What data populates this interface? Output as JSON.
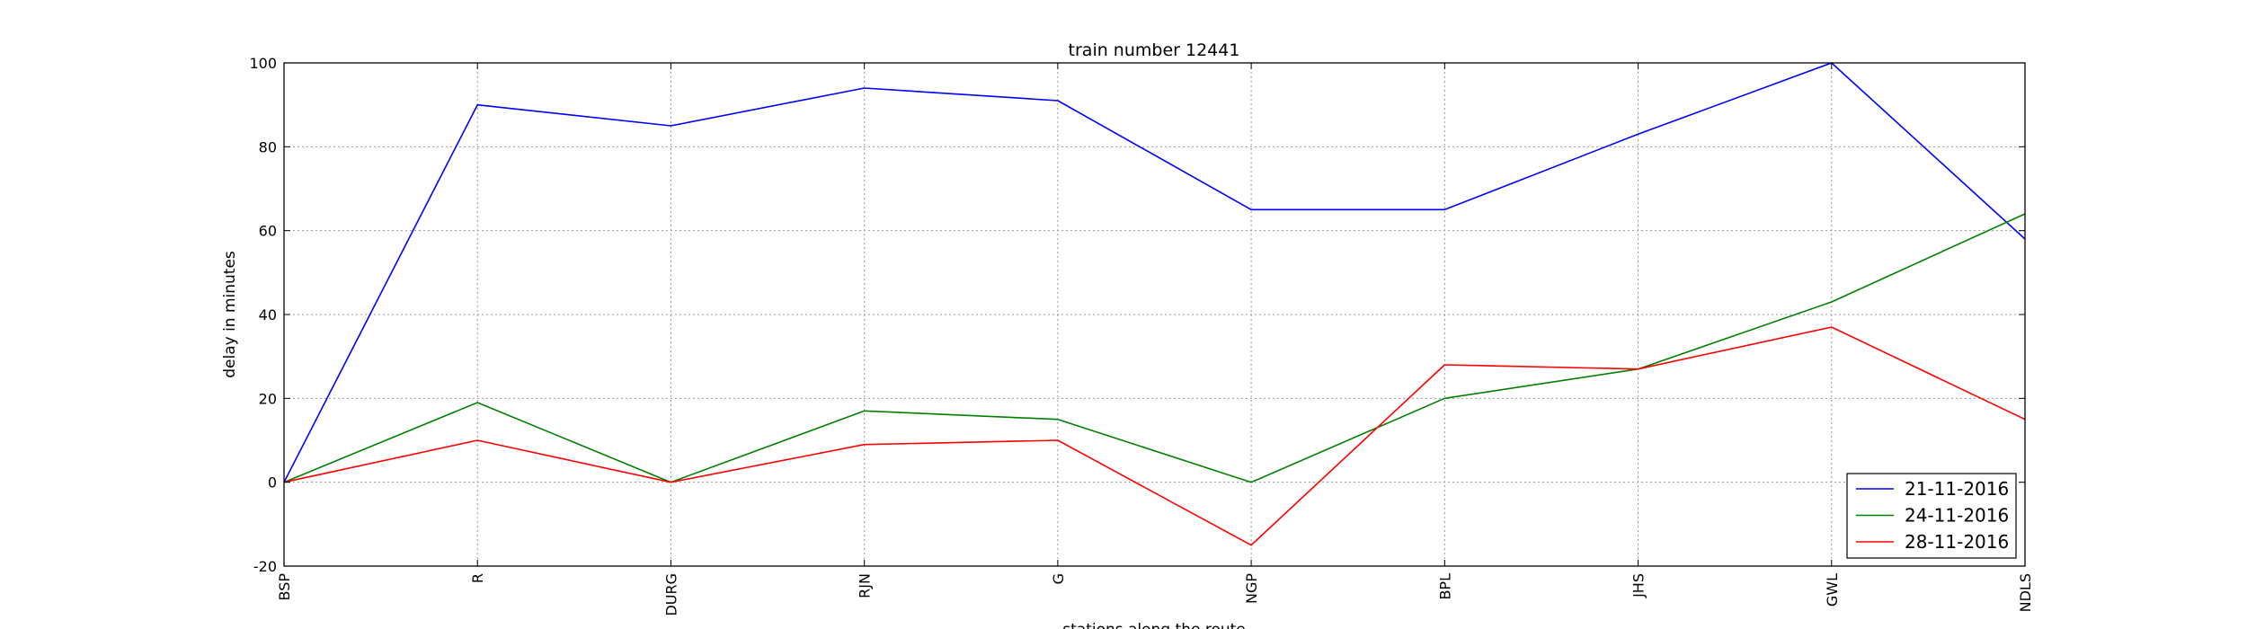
{
  "chart_data": {
    "type": "line",
    "title": "train number 12441",
    "xlabel": "stations along the route",
    "ylabel": "delay in minutes",
    "categories": [
      "BSP",
      "R",
      "DURG",
      "RJN",
      "G",
      "NGP",
      "BPL",
      "JHS",
      "GWL",
      "NDLS"
    ],
    "ylim": [
      -20,
      100
    ],
    "yticks": [
      -20,
      0,
      20,
      40,
      60,
      80,
      100
    ],
    "grid": true,
    "legend_position": "bottom-right",
    "series": [
      {
        "name": "21-11-2016",
        "color": "#0000ff",
        "values": [
          0,
          90,
          85,
          94,
          91,
          65,
          65,
          83,
          100,
          58
        ]
      },
      {
        "name": "24-11-2016",
        "color": "#008000",
        "values": [
          0,
          19,
          0,
          17,
          15,
          0,
          20,
          27,
          43,
          64
        ]
      },
      {
        "name": "28-11-2016",
        "color": "#ff0000",
        "values": [
          0,
          10,
          0,
          9,
          10,
          -15,
          28,
          27,
          37,
          15
        ]
      }
    ]
  }
}
